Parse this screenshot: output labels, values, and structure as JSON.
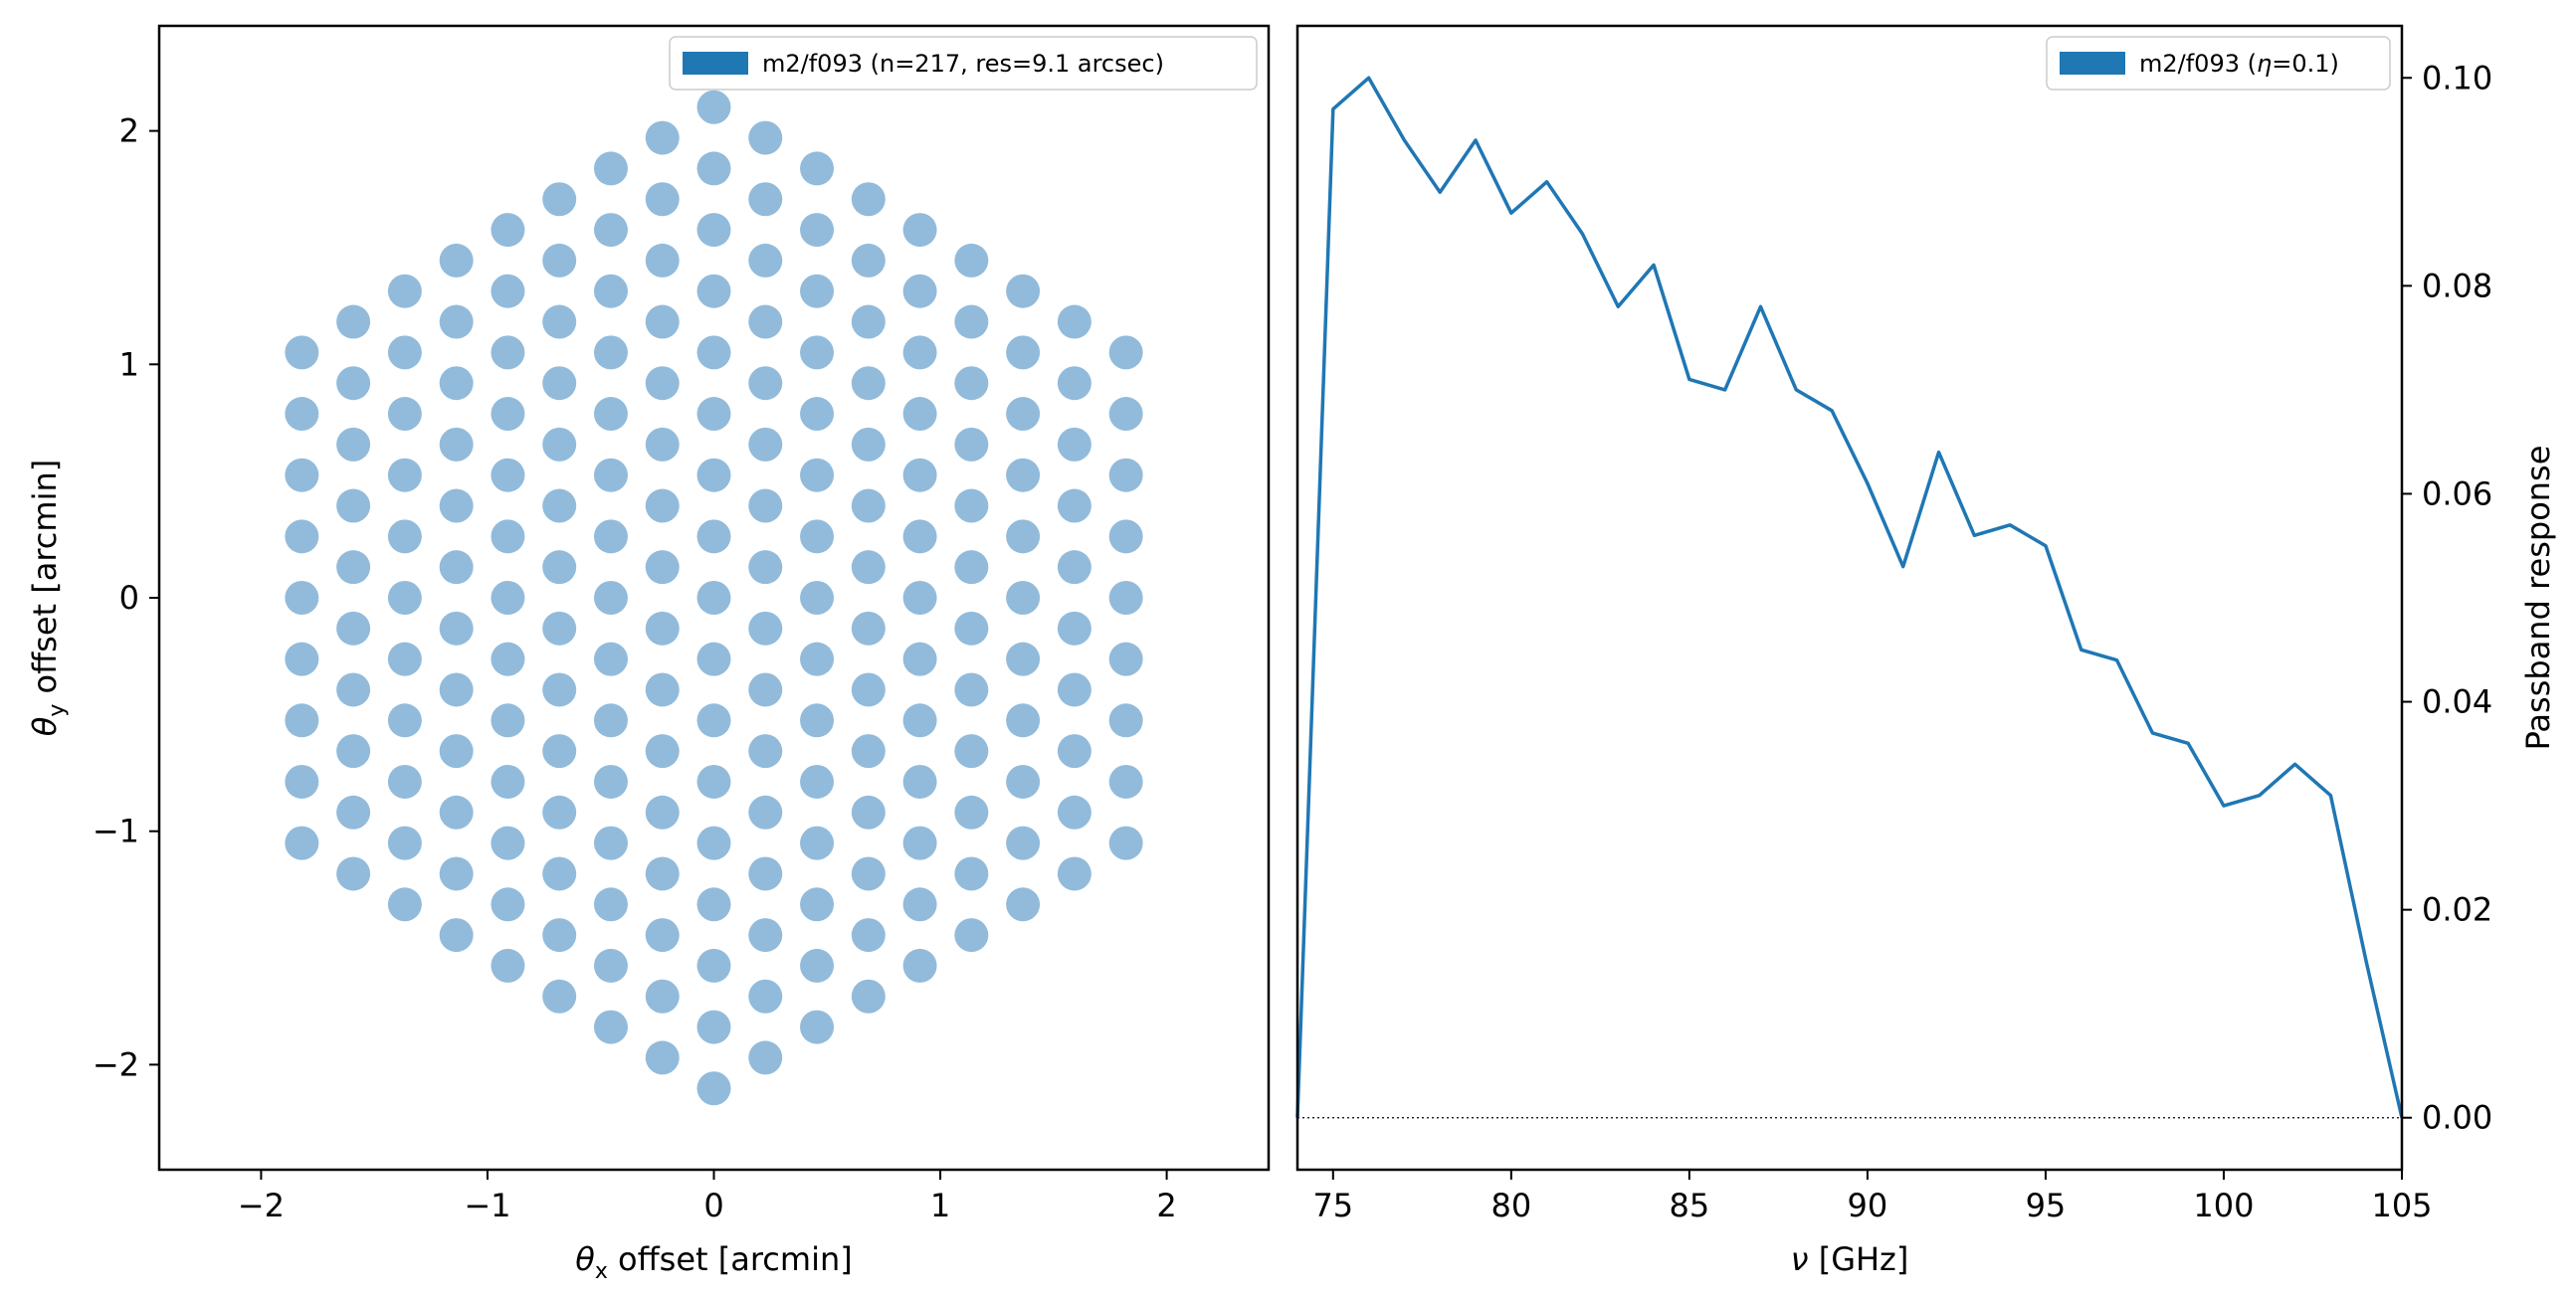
{
  "chart_data": [
    {
      "type": "scatter",
      "title": "",
      "xlabel_symbol": "θ",
      "xlabel_sub": "x",
      "xlabel_rest": " offset [arcmin]",
      "ylabel_symbol": "θ",
      "ylabel_sub": "y",
      "ylabel_rest": " offset [arcmin]",
      "xlim": [
        -2.45,
        2.45
      ],
      "ylim": [
        -2.45,
        2.45
      ],
      "xticks": [
        -2,
        -1,
        0,
        1,
        2
      ],
      "yticks": [
        -2,
        -1,
        0,
        1,
        2
      ],
      "xtick_labels": [
        "−2",
        "−1",
        "0",
        "1",
        "2"
      ],
      "ytick_labels": [
        "−2",
        "−1",
        "0",
        "1",
        "2"
      ],
      "legend": "m2/f093 (n=217, res=9.1 arcsec)",
      "legend_loc": "upper right",
      "marker_color": "#92BBDB",
      "legend_color": "#1F77B4",
      "layout": "hexagonal close-packed array, 8 rings around center",
      "n_points": 217,
      "spacing": 0.2627,
      "rings": 8,
      "grid": false
    },
    {
      "type": "line",
      "title": "",
      "xlabel_symbol": "ν",
      "xlabel_rest": " [GHz]",
      "ylabel": "Passband response",
      "xlim": [
        74,
        105
      ],
      "ylim": [
        -0.005,
        0.105
      ],
      "xticks": [
        75,
        80,
        85,
        90,
        95,
        100,
        105
      ],
      "yticks": [
        0.0,
        0.02,
        0.04,
        0.06,
        0.08,
        0.1
      ],
      "xtick_labels": [
        "75",
        "80",
        "85",
        "90",
        "95",
        "100",
        "105"
      ],
      "ytick_labels": [
        "0.00",
        "0.02",
        "0.04",
        "0.06",
        "0.08",
        "0.10"
      ],
      "yaxis_side": "right",
      "legend_prefix": "m2/f093 (",
      "legend_symbol": "η",
      "legend_suffix": "=0.1)",
      "legend_loc": "upper right",
      "line_color": "#1F77B4",
      "baseline": 0.0,
      "grid": false,
      "series": [
        {
          "x": [
            74,
            75,
            76,
            77,
            78,
            79,
            80,
            81,
            82,
            83,
            84,
            85,
            86,
            87,
            88,
            89,
            90,
            91,
            92,
            93,
            94,
            95,
            96,
            97,
            98,
            99,
            100,
            101,
            102,
            103,
            104,
            105
          ],
          "values": [
            0.0,
            0.097,
            0.1,
            0.094,
            0.089,
            0.094,
            0.087,
            0.09,
            0.085,
            0.078,
            0.082,
            0.071,
            0.07,
            0.078,
            0.07,
            0.068,
            0.061,
            0.053,
            0.064,
            0.056,
            0.057,
            0.055,
            0.045,
            0.044,
            0.037,
            0.036,
            0.03,
            0.031,
            0.034,
            0.031,
            0.015,
            0.0
          ]
        }
      ]
    }
  ]
}
